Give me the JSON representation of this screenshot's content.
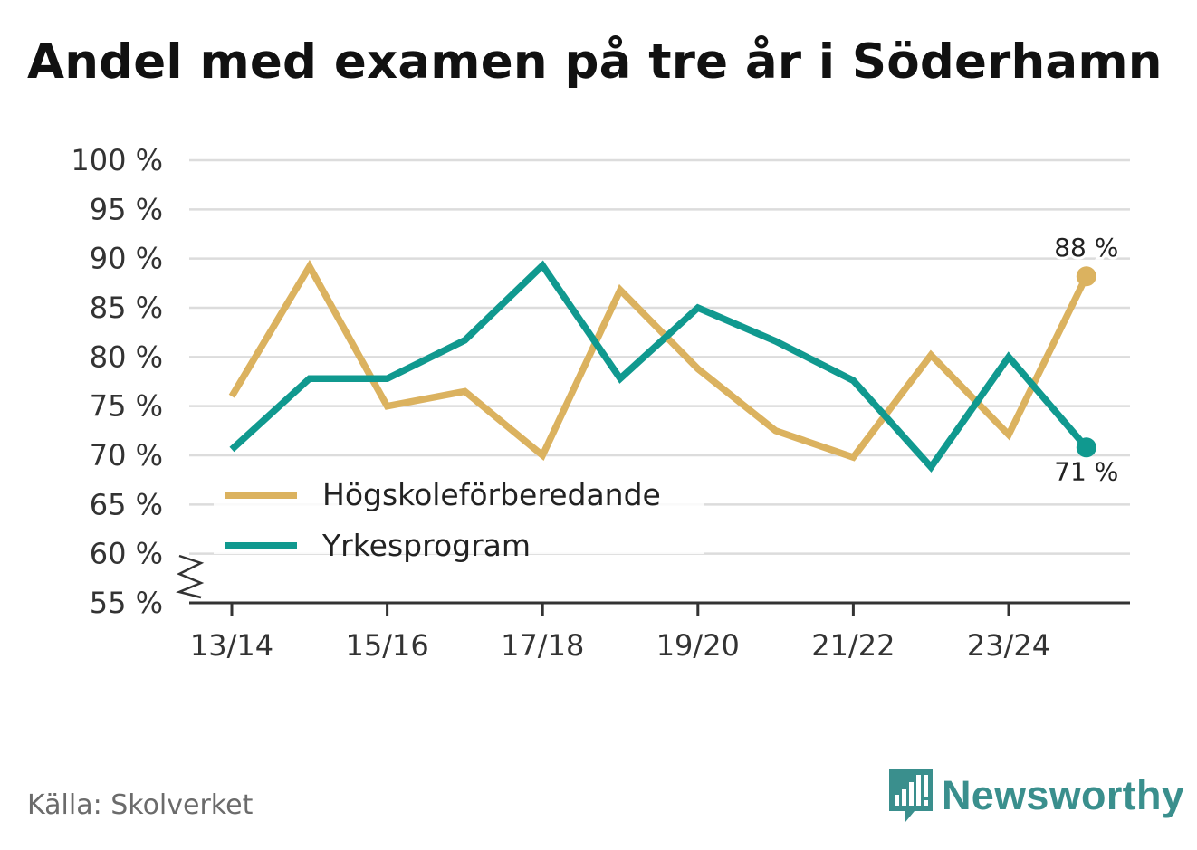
{
  "page": {
    "title": "Andel med examen på tre år i Söderhamn",
    "source": "Källa: Skolverket",
    "brand": "Newsworthy"
  },
  "colors": {
    "series1": "#dbb25f",
    "series2": "#10998f",
    "grid": "#dcdcdc",
    "axis": "#333333",
    "brand": "#3a8f8d"
  },
  "chart_data": {
    "type": "line",
    "title": "Andel med examen på tre år i Söderhamn",
    "xlabel": "",
    "ylabel": "",
    "ylim": [
      55,
      100
    ],
    "y_ticks": [
      100,
      95,
      90,
      85,
      80,
      75,
      70,
      65,
      60,
      55
    ],
    "y_tick_labels": [
      "100 %",
      "95 %",
      "90 %",
      "85 %",
      "80 %",
      "75 %",
      "70 %",
      "65 %",
      "60 %",
      "55 %"
    ],
    "y_axis_break": true,
    "x": [
      "13/14",
      "14/15",
      "15/16",
      "16/17",
      "17/18",
      "18/19",
      "19/20",
      "20/21",
      "21/22",
      "22/23",
      "23/24",
      "24/25"
    ],
    "x_tick_labels": [
      "13/14",
      "15/16",
      "17/18",
      "19/20",
      "21/22",
      "23/24"
    ],
    "grid": true,
    "legend": "inside-bottom-left",
    "series": [
      {
        "name": "Högskoleförberedande",
        "values": [
          76,
          89.2,
          75,
          76.5,
          70,
          86.8,
          78.8,
          72.5,
          69.8,
          80.2,
          72.1,
          88.2
        ],
        "end_label": "88 %"
      },
      {
        "name": "Yrkesprogram",
        "values": [
          70.6,
          77.8,
          77.8,
          81.7,
          89.3,
          77.8,
          85,
          81.6,
          77.6,
          68.8,
          80,
          70.8
        ],
        "end_label": "71 %"
      }
    ]
  }
}
